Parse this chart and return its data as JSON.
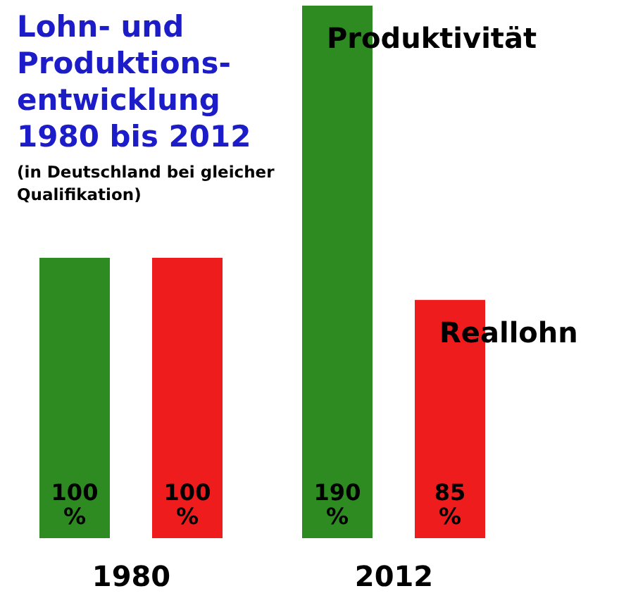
{
  "chart_data": {
    "type": "bar",
    "title": "Lohn- und Produktions-entwicklung 1980 bis 2012",
    "subtitle": "(in Deutschland bei gleicher Qualifikation)",
    "categories": [
      "1980",
      "2012"
    ],
    "series": [
      {
        "name": "Produktivität",
        "color": "#2e8b22",
        "values": [
          100,
          190
        ],
        "value_labels": [
          "100 %",
          "190 %"
        ]
      },
      {
        "name": "Reallohn",
        "color": "#ee1c1c",
        "values": [
          100,
          85
        ],
        "value_labels": [
          "100 %",
          "85 %"
        ]
      }
    ],
    "legend": false,
    "grid": false
  }
}
